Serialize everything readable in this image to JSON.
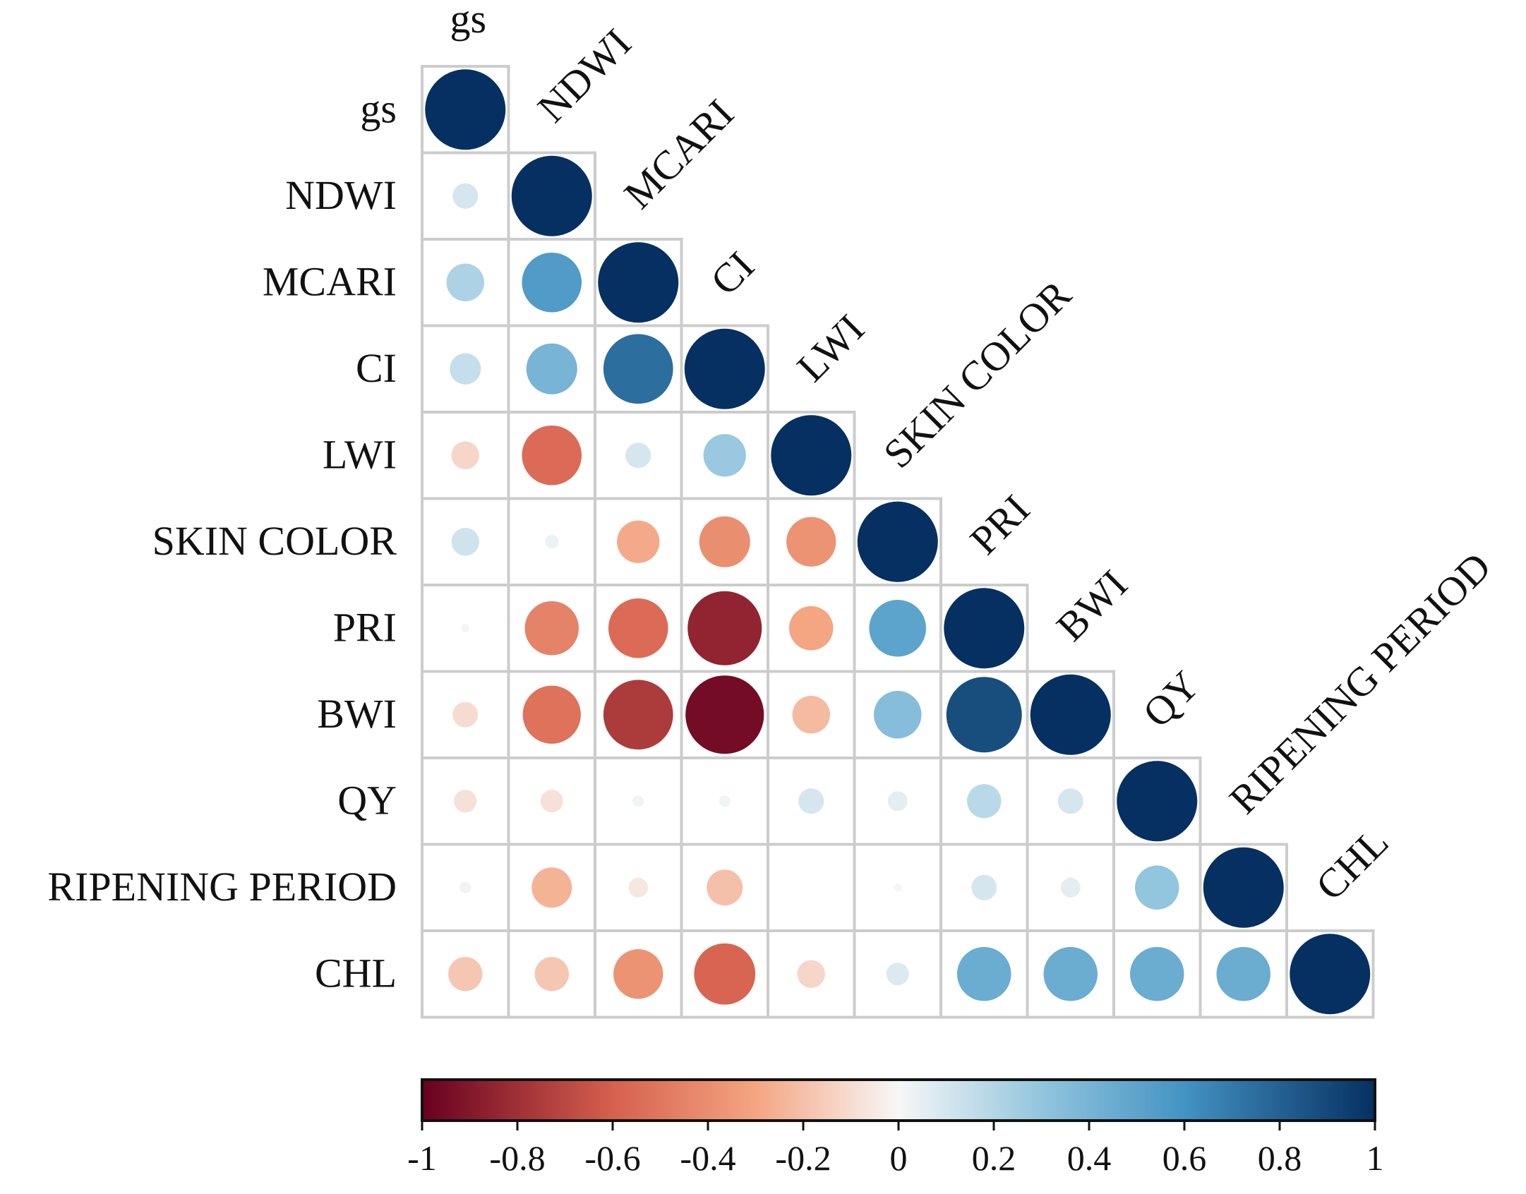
{
  "chart_data": {
    "type": "heatmap",
    "subtype": "correlation-circle-lower-triangle",
    "title": "",
    "variables": [
      "gs",
      "NDWI",
      "MCARI",
      "CI",
      "LWI",
      "SKIN COLOR",
      "PRI",
      "BWI",
      "QY",
      "RIPENING PERIOD",
      "CHL"
    ],
    "matrix": [
      [
        1.0
      ],
      [
        0.1,
        1.0
      ],
      [
        0.22,
        0.55,
        1.0
      ],
      [
        0.15,
        0.4,
        0.75,
        1.0
      ],
      [
        -0.12,
        -0.55,
        0.1,
        0.28,
        1.0
      ],
      [
        0.12,
        0.03,
        -0.28,
        -0.4,
        -0.38,
        1.0
      ],
      [
        0.01,
        -0.45,
        -0.55,
        -0.85,
        -0.3,
        0.5,
        1.0
      ],
      [
        -0.1,
        -0.52,
        -0.75,
        -0.95,
        -0.22,
        0.35,
        0.88,
        1.0
      ],
      [
        -0.08,
        -0.08,
        0.02,
        0.02,
        0.1,
        0.06,
        0.18,
        0.1,
        1.0
      ],
      [
        0.02,
        -0.25,
        -0.06,
        -0.2,
        0.0,
        0.01,
        0.1,
        0.06,
        0.3,
        1.0
      ],
      [
        -0.18,
        -0.18,
        -0.38,
        -0.58,
        -0.12,
        0.08,
        0.45,
        0.45,
        0.45,
        0.45,
        1.0
      ]
    ],
    "legend": {
      "min": -1,
      "max": 1,
      "ticks": [
        "-1",
        "-0.8",
        "-0.6",
        "-0.4",
        "-0.2",
        "0",
        "0.2",
        "0.4",
        "0.6",
        "0.8",
        "1"
      ],
      "placement": "bottom"
    },
    "colors": {
      "neg_strong": "#67001f",
      "neg_mid": "#d6604d",
      "neg_light": "#f4a582",
      "neutral": "#f7f7f7",
      "pos_light": "#92c5de",
      "pos_mid": "#4393c3",
      "pos_strong": "#053061",
      "grid": "#cccccc"
    }
  }
}
